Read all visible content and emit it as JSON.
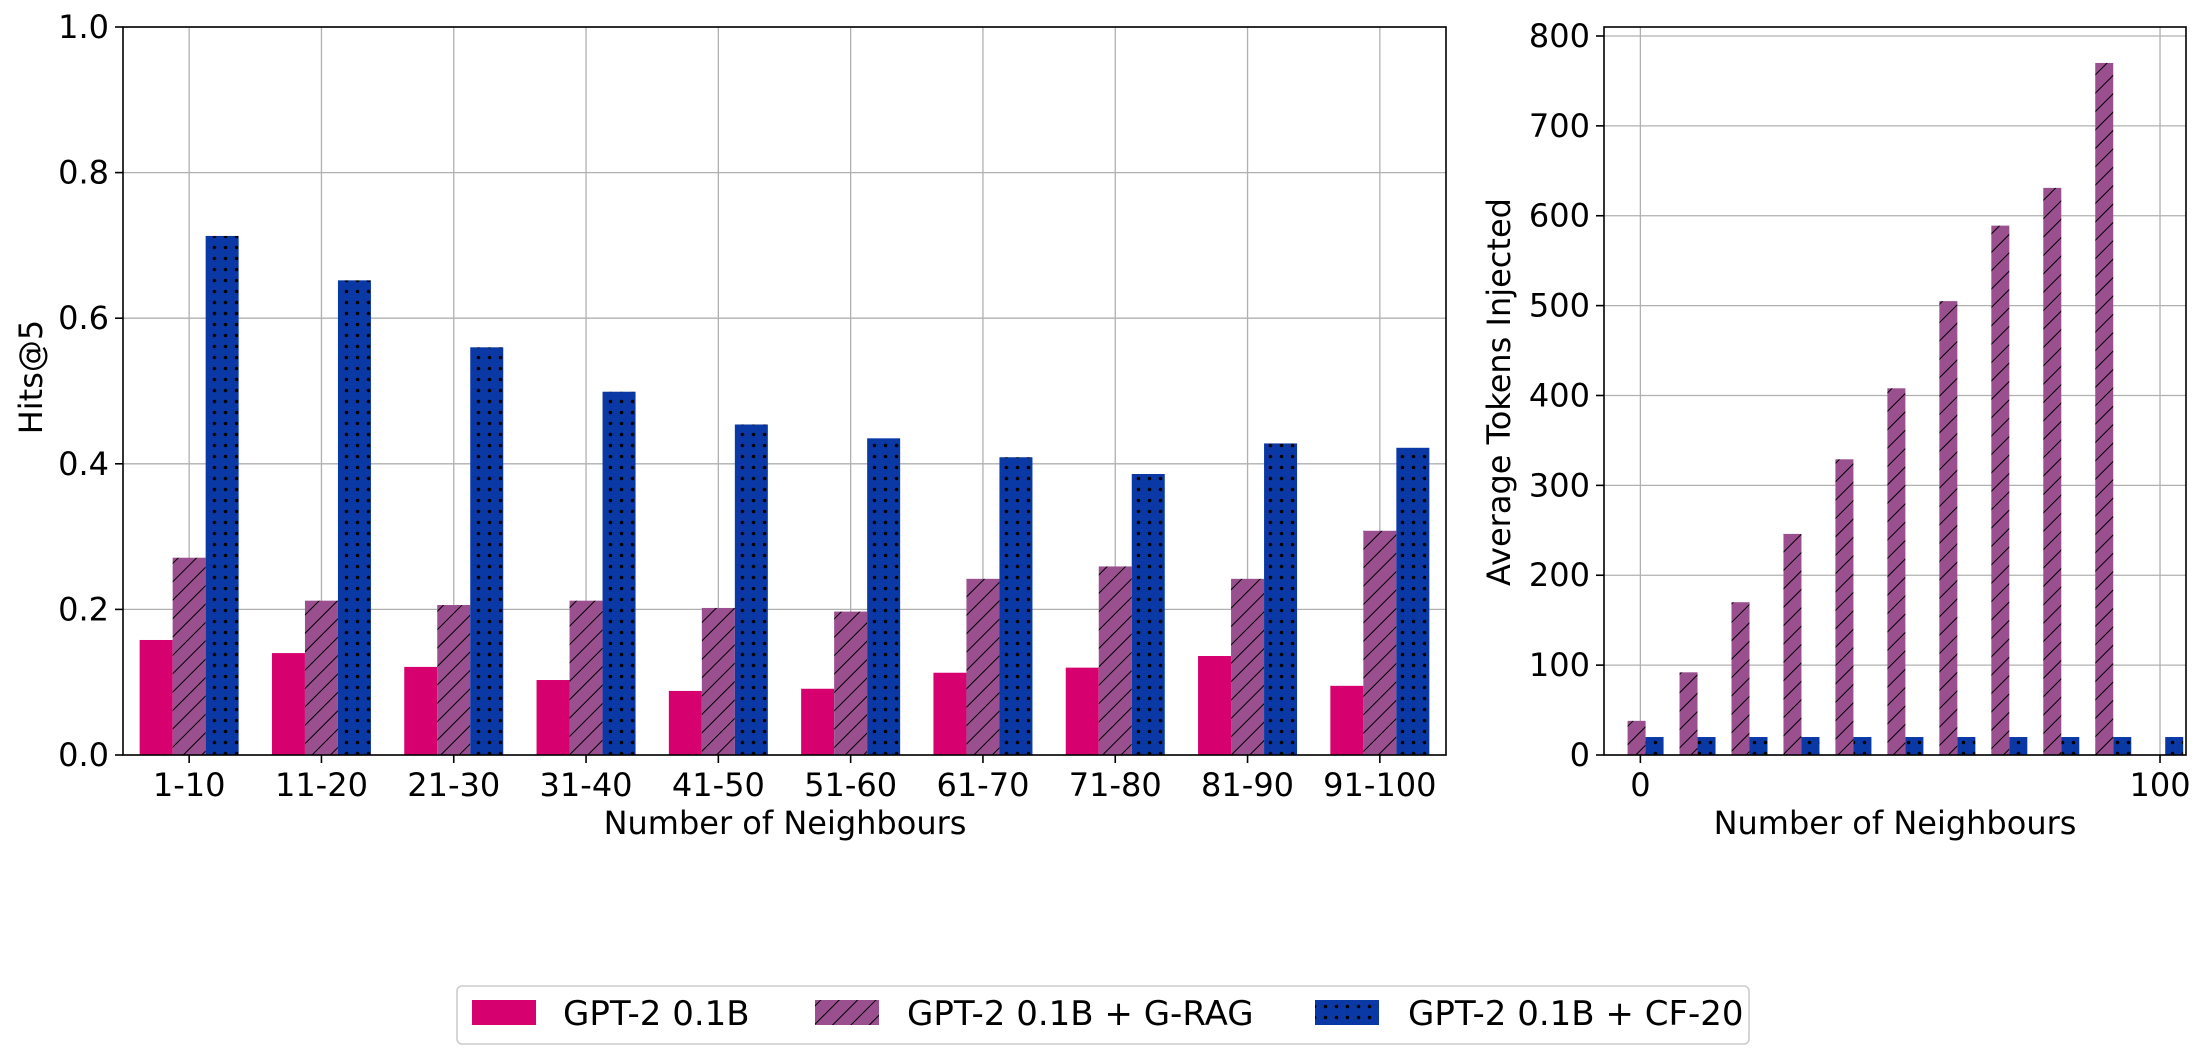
{
  "chart_data": [
    {
      "type": "bar",
      "xlabel": "Number of Neighbours",
      "ylabel": "Hits@5",
      "ylim": [
        0,
        1.0
      ],
      "yticks": [
        0.0,
        0.2,
        0.4,
        0.6,
        0.8,
        1.0
      ],
      "ytick_labels": [
        "0.0",
        "0.2",
        "0.4",
        "0.6",
        "0.8",
        "1.0"
      ],
      "grid": true,
      "categories": [
        "1-10",
        "11-20",
        "21-30",
        "31-40",
        "41-50",
        "51-60",
        "61-70",
        "71-80",
        "81-90",
        "91-100"
      ],
      "series": [
        {
          "name": "GPT-2 0.1B",
          "values": [
            0.158,
            0.14,
            0.121,
            0.103,
            0.088,
            0.091,
            0.113,
            0.12,
            0.136,
            0.095
          ]
        },
        {
          "name": "GPT-2 0.1B + G-RAG",
          "values": [
            0.271,
            0.212,
            0.206,
            0.212,
            0.202,
            0.197,
            0.242,
            0.259,
            0.242,
            0.308
          ]
        },
        {
          "name": "GPT-2 0.1B + CF-20",
          "values": [
            0.713,
            0.652,
            0.56,
            0.499,
            0.454,
            0.435,
            0.409,
            0.386,
            0.428,
            0.422
          ]
        }
      ]
    },
    {
      "type": "bar",
      "xlabel": "Number of Neighbours",
      "ylabel": "Average Tokens Injected",
      "ylim": [
        0,
        810
      ],
      "xlim": [
        -7,
        105
      ],
      "yticks": [
        0,
        100,
        200,
        300,
        400,
        500,
        600,
        700,
        800
      ],
      "ytick_labels": [
        "0",
        "100",
        "200",
        "300",
        "400",
        "500",
        "600",
        "700",
        "800"
      ],
      "xticks": [
        0,
        100
      ],
      "xtick_labels": [
        "0",
        "100"
      ],
      "grid": true,
      "x": [
        1,
        11,
        21,
        31,
        41,
        51,
        61,
        71,
        81,
        91,
        101
      ],
      "series": [
        {
          "name": "GPT-2 0.1B + G-RAG",
          "values": [
            38,
            92,
            170,
            246,
            329,
            408,
            505,
            589,
            631,
            770,
            null
          ]
        },
        {
          "name": "GPT-2 0.1B + CF-20",
          "values": [
            20,
            20,
            20,
            20,
            20,
            20,
            20,
            20,
            20,
            20,
            20
          ]
        }
      ]
    }
  ],
  "legend": {
    "placement": "bottom-center",
    "items": [
      {
        "label": "GPT-2 0.1B",
        "color": "#d6006f",
        "pattern": "solid"
      },
      {
        "label": "GPT-2 0.1B + G-RAG",
        "color": "#9a4f8f",
        "pattern": "hatch"
      },
      {
        "label": "GPT-2 0.1B + CF-20",
        "color": "#0a39a6",
        "pattern": "dots"
      }
    ]
  },
  "colors": {
    "series1": "#d6006f",
    "series2": "#9a4f8f",
    "series3": "#0a39a6",
    "grid": "#b0b0b0"
  }
}
